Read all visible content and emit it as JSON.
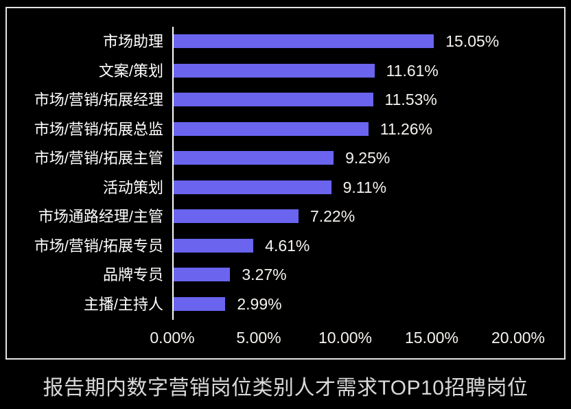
{
  "chart_data": {
    "type": "bar",
    "orientation": "horizontal",
    "title": "报告期内数字营销岗位类别人才需求TOP10招聘岗位",
    "xlabel": "",
    "ylabel": "",
    "categories": [
      "市场助理",
      "文案/策划",
      "市场/营销/拓展经理",
      "市场/营销/拓展总监",
      "市场/营销/拓展主管",
      "活动策划",
      "市场通路经理/主管",
      "市场/营销/拓展专员",
      "品牌专员",
      "主播/主持人"
    ],
    "values": [
      15.05,
      11.61,
      11.53,
      11.26,
      9.25,
      9.11,
      7.22,
      4.61,
      3.27,
      2.99
    ],
    "value_labels": [
      "15.05%",
      "11.61%",
      "11.53%",
      "11.26%",
      "9.25%",
      "9.11%",
      "7.22%",
      "4.61%",
      "3.27%",
      "2.99%"
    ],
    "xlim": [
      0,
      20
    ],
    "x_ticks": [
      "0.00%",
      "5.00%",
      "10.00%",
      "15.00%",
      "20.00%"
    ],
    "x_tick_values": [
      0,
      5,
      10,
      15,
      20
    ],
    "grid": false,
    "legend": false,
    "data_labels": true,
    "bar_color": "#6a64ef",
    "axis_color": "#ffffff",
    "label_color": "#ffffff",
    "value_color": "#f6f3ef",
    "frame_color": "#e4e4e4",
    "background_color": "#000000",
    "title_color": "#d9d9d9"
  }
}
